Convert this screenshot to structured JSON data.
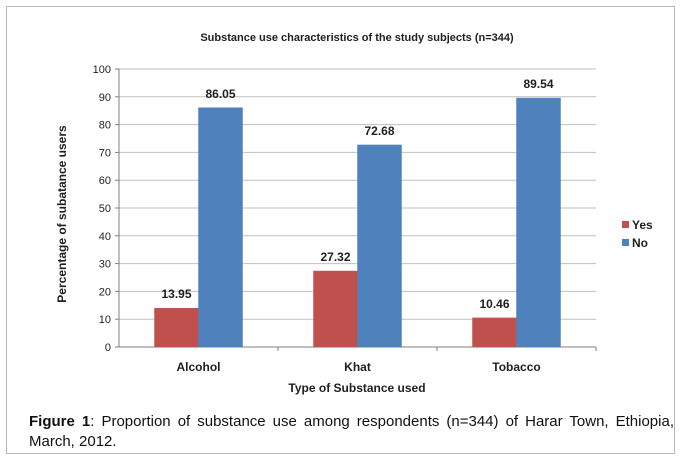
{
  "chart_data": {
    "type": "bar",
    "title": "Substance use characteristics of the study subjects (n=344)",
    "xlabel": "Type of Substance used",
    "ylabel": "Percentage of subatance users",
    "categories": [
      "Alcohol",
      "Khat",
      "Tobacco"
    ],
    "series": [
      {
        "name": "Yes",
        "color": "#c0504d",
        "values": [
          13.95,
          27.32,
          10.46
        ],
        "labels": [
          "13.95",
          "27.32",
          "10.46"
        ]
      },
      {
        "name": "No",
        "color": "#4f81bd",
        "values": [
          86.05,
          72.68,
          89.54
        ],
        "labels": [
          "86.05",
          "72.68",
          "89.54"
        ]
      }
    ],
    "ylim": [
      0,
      100
    ],
    "yticks": [
      0,
      10,
      20,
      30,
      40,
      50,
      60,
      70,
      80,
      90,
      100
    ],
    "grid": true,
    "legend_position": "right"
  },
  "caption": {
    "label": "Figure 1",
    "text": ": Proportion of substance use among respondents (n=344) of Harar Town, Ethiopia, March, 2012."
  }
}
